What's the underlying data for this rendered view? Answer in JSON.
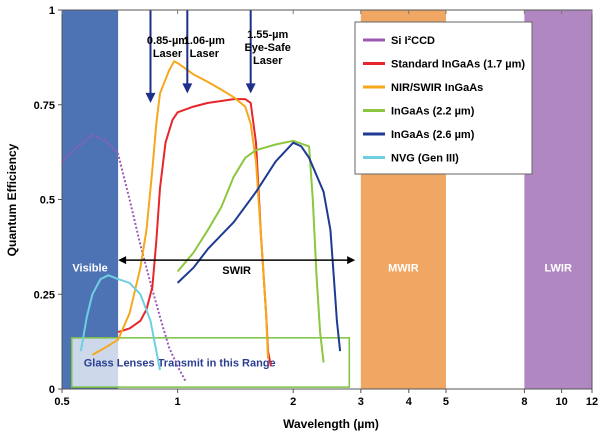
{
  "chart_data": {
    "type": "line",
    "xlabel": "Wavelength (µm)",
    "ylabel": "Quantum Efficiency",
    "x_scale": "log",
    "xlim": [
      0.5,
      12
    ],
    "ylim": [
      0,
      1
    ],
    "x_ticks": [
      0.5,
      1,
      2,
      3,
      4,
      5,
      8,
      10,
      12
    ],
    "y_ticks": [
      {
        "value": 0,
        "label": "0"
      },
      {
        "value": 0.25,
        "label": "0.25"
      },
      {
        "value": 0.5,
        "label": "0.5"
      },
      {
        "value": 0.75,
        "label": "0.75"
      },
      {
        "value": 1,
        "label": "1"
      }
    ],
    "bands": [
      {
        "label": "Visible",
        "x0": 0.5,
        "x1": 0.7,
        "color": "#4e73b5"
      },
      {
        "label": "MWIR",
        "x0": 3,
        "x1": 5,
        "color": "#efa763"
      },
      {
        "label": "LWIR",
        "x0": 8,
        "x1": 12,
        "color": "#b187c1"
      }
    ],
    "swir_arrow": {
      "label": "SWIR",
      "x0": 0.7,
      "x1": 2.9,
      "y": 0.34
    },
    "lasers": [
      {
        "label": "0.85-µm\nLaser",
        "x": 0.85,
        "y_tip": 0.755
      },
      {
        "label": "1.06-µm\nLaser",
        "x": 1.06,
        "y_tip": 0.78
      },
      {
        "label": "1.55-µm\nEye-Safe\nLaser",
        "x": 1.55,
        "y_tip": 0.78
      }
    ],
    "glass_region": {
      "label": "Glass Lenses Transmit in this Range",
      "x0": 0.53,
      "x1": 2.8,
      "y0": 0.005,
      "y1": 0.135
    },
    "series": [
      {
        "name": "Si I²CCD",
        "color": "#9b59b6",
        "style": "dotted",
        "points": [
          [
            0.5,
            0.6
          ],
          [
            0.55,
            0.64
          ],
          [
            0.6,
            0.67
          ],
          [
            0.65,
            0.655
          ],
          [
            0.7,
            0.62
          ],
          [
            0.75,
            0.5
          ],
          [
            0.8,
            0.38
          ],
          [
            0.85,
            0.28
          ],
          [
            0.9,
            0.19
          ],
          [
            0.95,
            0.11
          ],
          [
            1.0,
            0.06
          ],
          [
            1.05,
            0.02
          ]
        ]
      },
      {
        "name": "Standard InGaAs (1.7 µm)",
        "color": "#e8262a",
        "style": "solid",
        "points": [
          [
            0.7,
            0.15
          ],
          [
            0.75,
            0.16
          ],
          [
            0.8,
            0.18
          ],
          [
            0.83,
            0.21
          ],
          [
            0.86,
            0.27
          ],
          [
            0.88,
            0.39
          ],
          [
            0.9,
            0.53
          ],
          [
            0.93,
            0.65
          ],
          [
            0.97,
            0.71
          ],
          [
            1.0,
            0.73
          ],
          [
            1.1,
            0.745
          ],
          [
            1.2,
            0.755
          ],
          [
            1.3,
            0.76
          ],
          [
            1.4,
            0.765
          ],
          [
            1.5,
            0.765
          ],
          [
            1.55,
            0.755
          ],
          [
            1.6,
            0.65
          ],
          [
            1.65,
            0.4
          ],
          [
            1.7,
            0.2
          ],
          [
            1.72,
            0.1
          ],
          [
            1.75,
            0.06
          ]
        ]
      },
      {
        "name": "NIR/SWIR InGaAs",
        "color": "#f6a81c",
        "style": "solid",
        "points": [
          [
            0.6,
            0.09
          ],
          [
            0.65,
            0.11
          ],
          [
            0.7,
            0.13
          ],
          [
            0.75,
            0.2
          ],
          [
            0.8,
            0.32
          ],
          [
            0.83,
            0.42
          ],
          [
            0.86,
            0.58
          ],
          [
            0.88,
            0.7
          ],
          [
            0.9,
            0.78
          ],
          [
            0.95,
            0.84
          ],
          [
            0.98,
            0.865
          ],
          [
            1.0,
            0.86
          ],
          [
            1.05,
            0.845
          ],
          [
            1.1,
            0.83
          ],
          [
            1.2,
            0.81
          ],
          [
            1.3,
            0.79
          ],
          [
            1.4,
            0.77
          ],
          [
            1.5,
            0.745
          ],
          [
            1.55,
            0.7
          ],
          [
            1.6,
            0.6
          ],
          [
            1.65,
            0.4
          ],
          [
            1.7,
            0.2
          ],
          [
            1.72,
            0.08
          ]
        ]
      },
      {
        "name": "InGaAs (2.2 µm)",
        "color": "#8dc63f",
        "style": "solid",
        "points": [
          [
            1.0,
            0.31
          ],
          [
            1.1,
            0.36
          ],
          [
            1.2,
            0.42
          ],
          [
            1.3,
            0.48
          ],
          [
            1.4,
            0.56
          ],
          [
            1.5,
            0.61
          ],
          [
            1.6,
            0.63
          ],
          [
            1.8,
            0.645
          ],
          [
            2.0,
            0.655
          ],
          [
            2.2,
            0.64
          ],
          [
            2.25,
            0.5
          ],
          [
            2.3,
            0.3
          ],
          [
            2.35,
            0.15
          ],
          [
            2.4,
            0.07
          ]
        ]
      },
      {
        "name": "InGaAs (2.6 µm)",
        "color": "#1f3a93",
        "style": "solid",
        "points": [
          [
            1.0,
            0.28
          ],
          [
            1.1,
            0.32
          ],
          [
            1.2,
            0.37
          ],
          [
            1.4,
            0.44
          ],
          [
            1.6,
            0.52
          ],
          [
            1.8,
            0.6
          ],
          [
            2.0,
            0.65
          ],
          [
            2.1,
            0.64
          ],
          [
            2.2,
            0.61
          ],
          [
            2.4,
            0.52
          ],
          [
            2.5,
            0.42
          ],
          [
            2.55,
            0.3
          ],
          [
            2.6,
            0.18
          ],
          [
            2.65,
            0.1
          ]
        ]
      },
      {
        "name": "NVG (Gen III)",
        "color": "#6ecfe0",
        "style": "solid",
        "points": [
          [
            0.56,
            0.1
          ],
          [
            0.58,
            0.19
          ],
          [
            0.6,
            0.25
          ],
          [
            0.63,
            0.29
          ],
          [
            0.66,
            0.3
          ],
          [
            0.7,
            0.29
          ],
          [
            0.75,
            0.28
          ],
          [
            0.8,
            0.25
          ],
          [
            0.85,
            0.18
          ],
          [
            0.88,
            0.1
          ],
          [
            0.9,
            0.05
          ]
        ]
      }
    ]
  }
}
